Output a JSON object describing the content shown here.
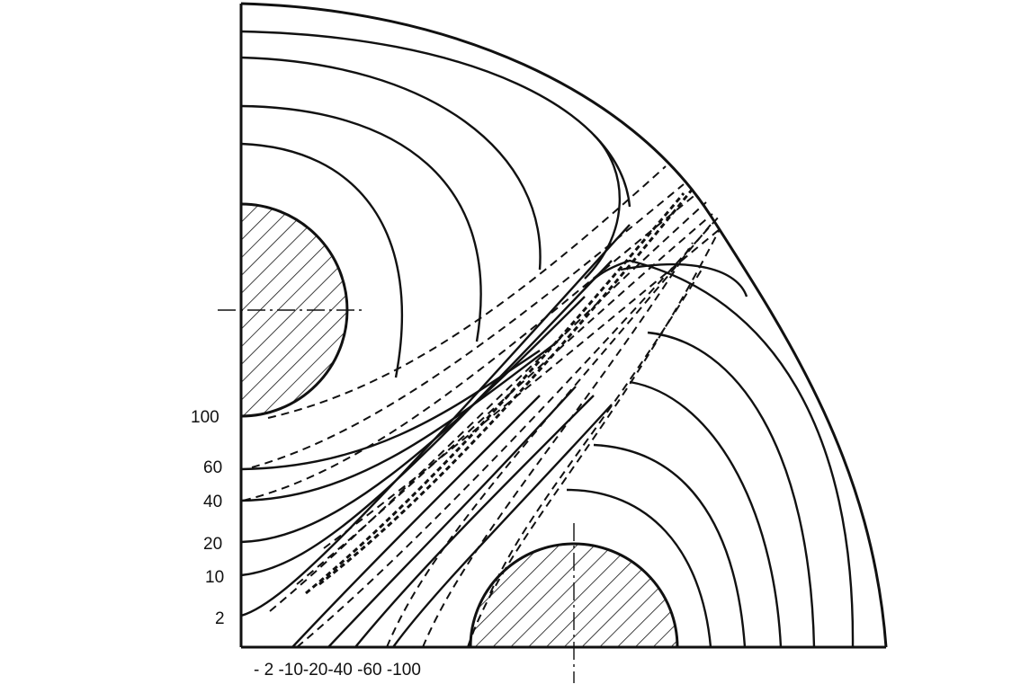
{
  "diagram": {
    "left_axis_labels": {
      "l100": "100",
      "l60": "60",
      "l40": "40",
      "l20": "20",
      "l10": "10",
      "l2": "2"
    },
    "bottom_axis_labels": "- 2   -10-20-40 -60 -100",
    "colors": {
      "ink": "#111111",
      "background": "#ffffff"
    }
  }
}
